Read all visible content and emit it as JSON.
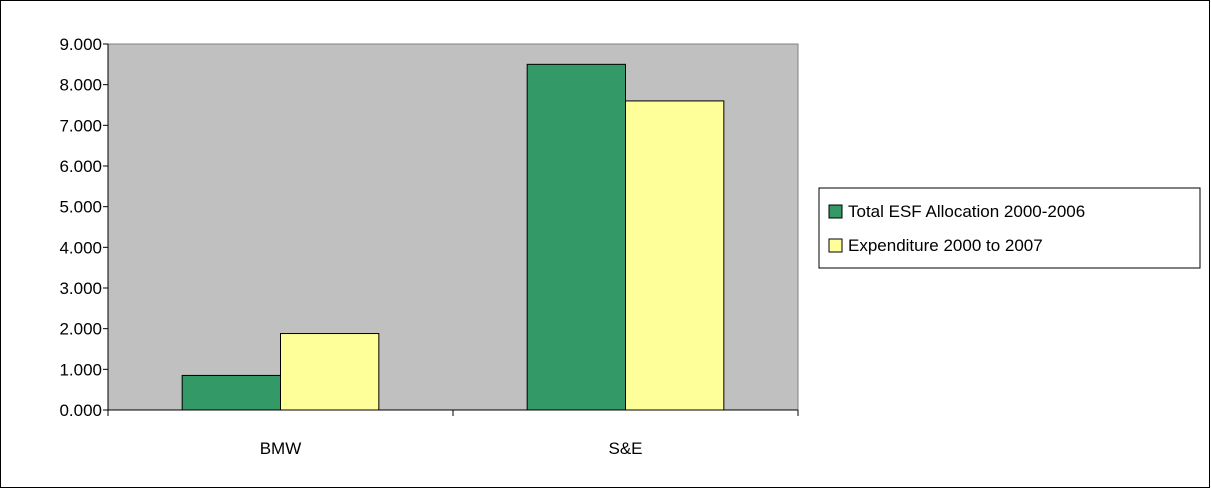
{
  "chart_data": {
    "type": "bar",
    "categories": [
      "BMW",
      "S&E"
    ],
    "series": [
      {
        "name": "Total ESF Allocation 2000-2006",
        "color": "#339966",
        "values": [
          0.85,
          8.5
        ]
      },
      {
        "name": "Expenditure 2000 to 2007",
        "color": "#ffff99",
        "values": [
          1.88,
          7.6
        ]
      }
    ],
    "ylim": [
      0,
      9
    ],
    "y_ticks": [
      "0.000",
      "1.000",
      "2.000",
      "3.000",
      "4.000",
      "5.000",
      "6.000",
      "7.000",
      "8.000",
      "9.000"
    ],
    "plot_background": "#c0c0c0",
    "legend_position": "right",
    "grid": false
  }
}
